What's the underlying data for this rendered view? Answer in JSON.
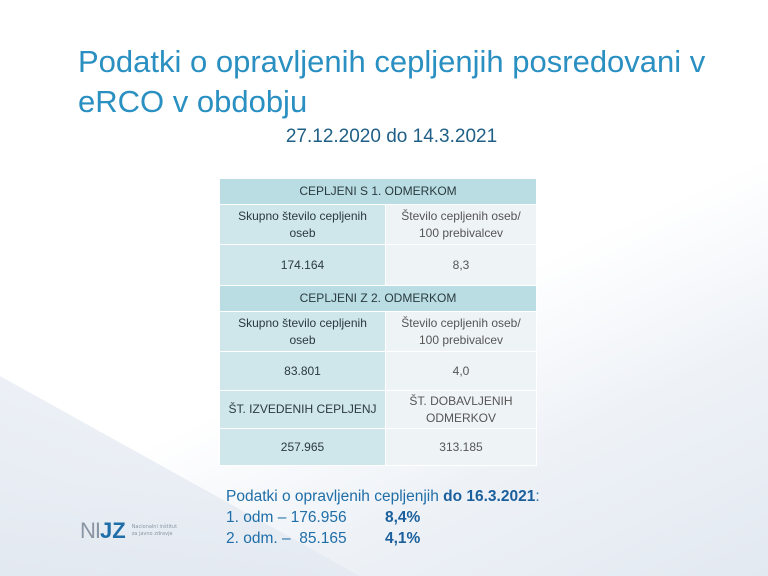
{
  "title": "Podatki o opravljenih cepljenjih posredovani v eRCO v obdobju",
  "subtitle": "27.12.2020 do 14.3.2021",
  "table": {
    "section1": "CEPLJENI S 1. ODMERKOM",
    "col_total": "Skupno število cepljenih oseb",
    "col_per100": "Število cepljenih oseb/ 100 prebivalcev",
    "s1_total": "174.164",
    "s1_per100": "8,3",
    "section2": "CEPLJENI Z 2. ODMERKOM",
    "s2_total": "83.801",
    "s2_per100": "4,0",
    "col_performed": "ŠT. IZVEDENIH CEPLJENJ",
    "col_delivered": "ŠT. DOBAVLJENIH ODMERKOV",
    "performed": "257.965",
    "delivered": "313.185"
  },
  "footer": {
    "line1_text": "Podatki o opravljenih cepljenjih ",
    "line1_bold": "do 16.3.2021",
    "line1_end": ":",
    "r1_label": "1. odm – 176.956",
    "r1_pct": "8,4%",
    "r2_label": "2. odm. –  85.165",
    "r2_pct": "4,1%"
  },
  "logo": {
    "ni": "NI",
    "jz": "JZ",
    "text": "Nacionalni inštitut za javno zdravje"
  }
}
